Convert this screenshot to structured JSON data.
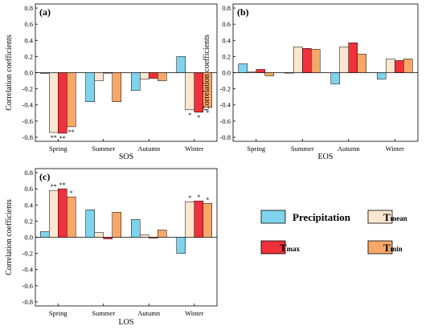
{
  "figure": {
    "legend": {
      "items": [
        {
          "key": "precipitation",
          "label": "Precipitation",
          "sub": "",
          "color": "#7fd3ec"
        },
        {
          "key": "tmean",
          "label": "T",
          "sub": "mean",
          "color": "#fbe7cf"
        },
        {
          "key": "tmax",
          "label": "T",
          "sub": "max",
          "color": "#f0303a"
        },
        {
          "key": "tmin",
          "label": "T",
          "sub": "min",
          "color": "#f7a868"
        }
      ]
    }
  },
  "chart_data": [
    {
      "type": "bar",
      "panel": "(a)",
      "xlabel": "SOS",
      "ylabel": "Correlation coefficients",
      "ylim": [
        -0.85,
        0.85
      ],
      "yticks": [
        -0.8,
        -0.6,
        -0.4,
        -0.2,
        0.0,
        0.2,
        0.4,
        0.6,
        0.8
      ],
      "categories": [
        "Spring",
        "Summer",
        "Autumn",
        "Winter"
      ],
      "series": [
        {
          "name": "Precipitation",
          "values": [
            -0.01,
            -0.36,
            -0.22,
            0.2
          ]
        },
        {
          "name": "Tmean",
          "values": [
            -0.74,
            -0.1,
            -0.08,
            -0.46
          ]
        },
        {
          "name": "Tmax",
          "values": [
            -0.75,
            0.0,
            -0.07,
            -0.49
          ]
        },
        {
          "name": "Tmin",
          "values": [
            -0.67,
            -0.36,
            -0.1,
            -0.43
          ]
        }
      ],
      "significance": [
        [
          "",
          "**",
          "**",
          "**"
        ],
        [
          "",
          "",
          "",
          ""
        ],
        [
          "",
          "",
          "",
          ""
        ],
        [
          "",
          "*",
          "*",
          "*"
        ]
      ]
    },
    {
      "type": "bar",
      "panel": "(b)",
      "xlabel": "EOS",
      "ylabel": "Correlation coefficients",
      "ylim": [
        -0.85,
        0.85
      ],
      "yticks": [
        -0.8,
        -0.6,
        -0.4,
        -0.2,
        0.0,
        0.2,
        0.4,
        0.6,
        0.8
      ],
      "categories": [
        "Spring",
        "Summer",
        "Autumn",
        "Winter"
      ],
      "series": [
        {
          "name": "Precipitation",
          "values": [
            0.11,
            0.0,
            -0.14,
            -0.08
          ]
        },
        {
          "name": "Tmean",
          "values": [
            0.01,
            0.32,
            0.32,
            0.17
          ]
        },
        {
          "name": "Tmax",
          "values": [
            0.04,
            0.3,
            0.37,
            0.15
          ]
        },
        {
          "name": "Tmin",
          "values": [
            -0.04,
            0.29,
            0.23,
            0.17
          ]
        }
      ],
      "significance": [
        [
          "",
          "",
          "",
          ""
        ],
        [
          "",
          "",
          "",
          ""
        ],
        [
          "",
          "",
          "",
          ""
        ],
        [
          "",
          "",
          "",
          ""
        ]
      ]
    },
    {
      "type": "bar",
      "panel": "(c)",
      "xlabel": "LOS",
      "ylabel": "Correlation coefficients",
      "ylim": [
        -0.85,
        0.85
      ],
      "yticks": [
        -0.8,
        -0.6,
        -0.4,
        -0.2,
        0.0,
        0.2,
        0.4,
        0.6,
        0.8
      ],
      "categories": [
        "Spring",
        "Summer",
        "Autumn",
        "Winter"
      ],
      "series": [
        {
          "name": "Precipitation",
          "values": [
            0.07,
            0.34,
            0.22,
            -0.2
          ]
        },
        {
          "name": "Tmean",
          "values": [
            0.58,
            0.06,
            0.03,
            0.44
          ]
        },
        {
          "name": "Tmax",
          "values": [
            0.6,
            -0.02,
            -0.01,
            0.45
          ]
        },
        {
          "name": "Tmin",
          "values": [
            0.5,
            0.31,
            0.09,
            0.42
          ]
        }
      ],
      "significance": [
        [
          "",
          "**",
          "**",
          "*"
        ],
        [
          "",
          "",
          "",
          ""
        ],
        [
          "",
          "",
          "",
          ""
        ],
        [
          "",
          "*",
          "*",
          "*"
        ]
      ]
    }
  ]
}
